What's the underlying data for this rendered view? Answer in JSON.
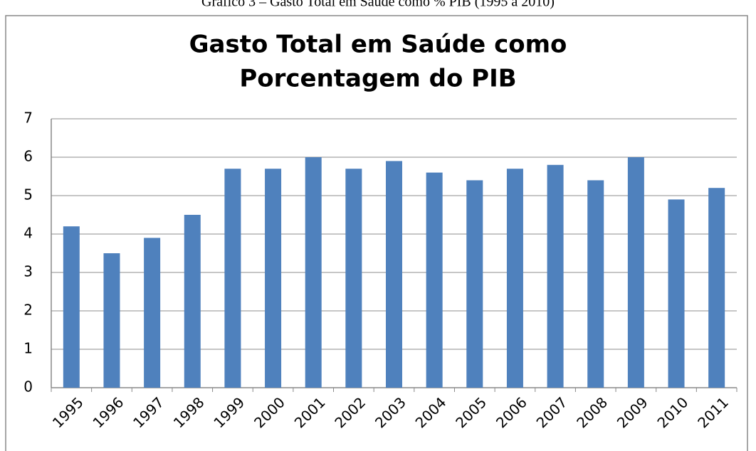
{
  "caption": "Gráfico 3 – Gasto Total em Saúde como % PIB (1995 a 2010)",
  "chart_data": {
    "type": "bar",
    "title": [
      "Gasto Total em Saúde como",
      "Porcentagem do PIB"
    ],
    "categories": [
      "1995",
      "1996",
      "1997",
      "1998",
      "1999",
      "2000",
      "2001",
      "2002",
      "2003",
      "2004",
      "2005",
      "2006",
      "2007",
      "2008",
      "2009",
      "2010",
      "2011"
    ],
    "values": [
      4.2,
      3.5,
      3.9,
      4.5,
      5.7,
      5.7,
      6.0,
      5.7,
      5.9,
      5.6,
      5.4,
      5.7,
      5.8,
      5.4,
      6.0,
      4.9,
      5.2
    ],
    "color": "#4f81bd",
    "ylim": [
      0,
      7
    ],
    "yticks": [
      0,
      1,
      2,
      3,
      4,
      5,
      6,
      7
    ],
    "grid": true
  }
}
